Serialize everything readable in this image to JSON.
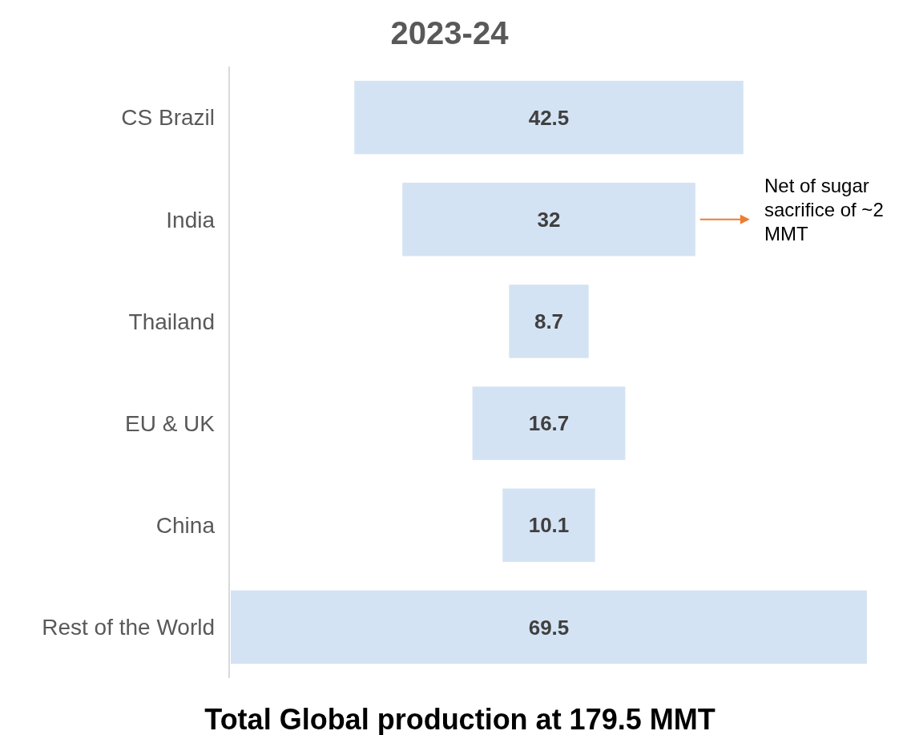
{
  "chart_data": {
    "type": "other",
    "title": "2023-24",
    "categories": [
      "CS Brazil",
      "India",
      "Thailand",
      "EU & UK",
      "China",
      "Rest of the World"
    ],
    "values": [
      42.5,
      32,
      8.7,
      16.7,
      10.1,
      69.5
    ],
    "color": "#d4e3f3",
    "data_labels": true,
    "annotations": [
      {
        "text": "Net of sugar sacrifice of ~2 MMT",
        "y": "India"
      },
      "Total Global production at 179.5 MMT"
    ]
  }
}
